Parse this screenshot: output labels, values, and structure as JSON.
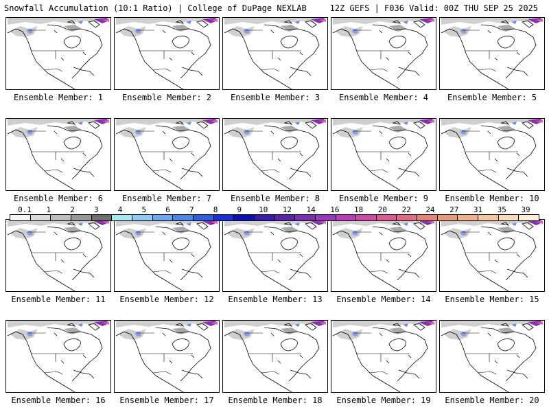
{
  "header": {
    "left": "Snowfall Accumulation (10:1 Ratio) | College of DuPage NEXLAB",
    "right": "12Z GEFS | F036 Valid: 00Z THU SEP 25 2025"
  },
  "panels": [
    {
      "label": "Ensemble Member: 1"
    },
    {
      "label": "Ensemble Member: 2"
    },
    {
      "label": "Ensemble Member: 3"
    },
    {
      "label": "Ensemble Member: 4"
    },
    {
      "label": "Ensemble Member: 5"
    },
    {
      "label": "Ensemble Member: 6"
    },
    {
      "label": "Ensemble Member: 7"
    },
    {
      "label": "Ensemble Member: 8"
    },
    {
      "label": "Ensemble Member: 9"
    },
    {
      "label": "Ensemble Member: 10"
    },
    {
      "label": "Ensemble Member: 11"
    },
    {
      "label": "Ensemble Member: 12"
    },
    {
      "label": "Ensemble Member: 13"
    },
    {
      "label": "Ensemble Member: 14"
    },
    {
      "label": "Ensemble Member: 15"
    },
    {
      "label": "Ensemble Member: 16"
    },
    {
      "label": "Ensemble Member: 17"
    },
    {
      "label": "Ensemble Member: 18"
    },
    {
      "label": "Ensemble Member: 19"
    },
    {
      "label": "Ensemble Member: 20"
    }
  ],
  "colorbar": {
    "labels": [
      "0.1",
      "1",
      "2",
      "3",
      "4",
      "5",
      "6",
      "7",
      "8",
      "9",
      "10",
      "12",
      "14",
      "16",
      "18",
      "20",
      "22",
      "24",
      "27",
      "31",
      "35",
      "39"
    ],
    "colors": [
      "#f6f6f6",
      "#dcdcdc",
      "#bebebe",
      "#9a9a9a",
      "#6f6f6f",
      "#a8e8f0",
      "#8ecbf5",
      "#6aa7ee",
      "#4a86e8",
      "#2f5fe0",
      "#1a2fd8",
      "#1010b8",
      "#3a1aa8",
      "#5a24a8",
      "#7a2fb0",
      "#9a3ab8",
      "#b83fb8",
      "#cc4aa8",
      "#dc5a98",
      "#e06a88",
      "#e48478",
      "#e89c78",
      "#eeb48a",
      "#f4c8a0",
      "#f8dcbc",
      "#fcecd8"
    ]
  },
  "map_colors": {
    "land": "#ffffff",
    "coast": "#000000",
    "snow_light": "#cfcfcf",
    "snow_mid": "#a8a8a8",
    "snow_blue": "#6a8ae8",
    "snow_purple": "#8a2fb0",
    "snow_pink": "#e060c0"
  }
}
